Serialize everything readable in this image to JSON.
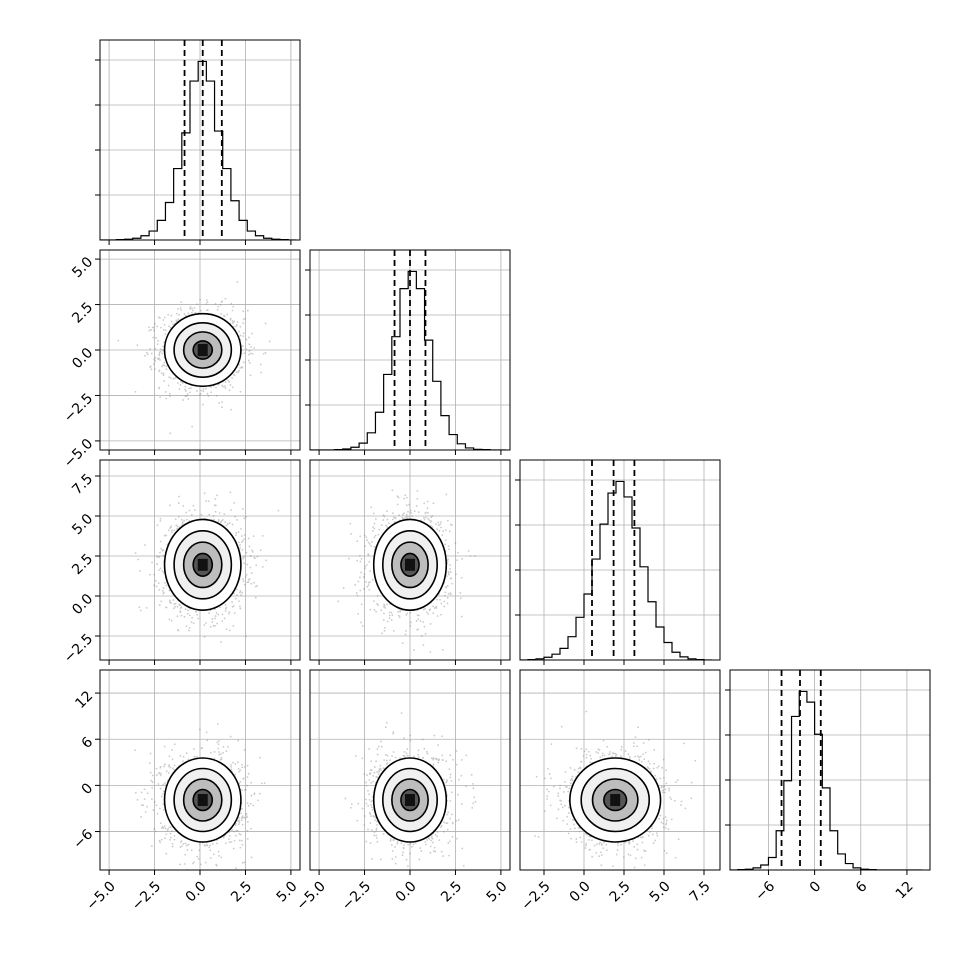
{
  "chart_data": {
    "type": "corner",
    "n_params": 4,
    "grid": true,
    "axis_ranges": [
      [
        -5.5,
        5.5
      ],
      [
        -5.5,
        5.5
      ],
      [
        -4.0,
        8.5
      ],
      [
        -11,
        15
      ]
    ],
    "tick_values": [
      [
        -5.0,
        -2.5,
        0.0,
        2.5,
        5.0
      ],
      [
        -5.0,
        -2.5,
        0.0,
        2.5,
        5.0
      ],
      [
        -2.5,
        0.0,
        2.5,
        5.0,
        7.5
      ],
      [
        -6,
        0,
        6,
        12
      ]
    ],
    "tick_labels": [
      [
        "−5.0",
        "−2.5",
        "0.0",
        "2.5",
        "5.0"
      ],
      [
        "−5.0",
        "−2.5",
        "0.0",
        "2.5",
        "5.0"
      ],
      [
        "−2.5",
        "0.0",
        "2.5",
        "5.0",
        "7.5"
      ],
      [
        "−6",
        "0",
        "6",
        "12"
      ]
    ],
    "parameters": [
      {
        "mean": 0.15,
        "sd": 1.0,
        "quantiles": [
          -0.85,
          0.15,
          1.2
        ]
      },
      {
        "mean": 0.0,
        "sd": 0.95,
        "quantiles": [
          -0.85,
          0.0,
          0.85
        ]
      },
      {
        "mean": 1.95,
        "sd": 1.35,
        "quantiles": [
          0.5,
          1.85,
          3.15
        ]
      },
      {
        "mean": -1.9,
        "sd": 2.6,
        "quantiles": [
          -4.3,
          -1.9,
          0.8
        ]
      }
    ],
    "histograms": [
      {
        "bin_edges": [
          -5.5,
          -5.05,
          -4.6,
          -4.15,
          -3.7,
          -3.25,
          -2.8,
          -2.35,
          -1.9,
          -1.45,
          -1.0,
          -0.55,
          -0.1,
          0.35,
          0.8,
          1.25,
          1.7,
          2.15,
          2.6,
          3.05,
          3.5,
          3.95,
          4.4,
          4.85,
          5.3
        ],
        "counts": [
          0,
          0,
          1,
          2,
          5,
          12,
          25,
          55,
          105,
          200,
          300,
          445,
          500,
          445,
          305,
          200,
          110,
          55,
          25,
          12,
          5,
          2,
          1,
          0
        ]
      },
      {
        "bin_edges": [
          -5.5,
          -5.05,
          -4.6,
          -4.15,
          -3.7,
          -3.25,
          -2.8,
          -2.35,
          -1.9,
          -1.45,
          -1.0,
          -0.55,
          -0.1,
          0.35,
          0.8,
          1.25,
          1.7,
          2.15,
          2.6,
          3.05,
          3.5,
          3.95,
          4.4,
          4.85,
          5.3
        ],
        "counts": [
          0,
          0,
          0,
          1,
          3,
          8,
          20,
          50,
          110,
          220,
          330,
          470,
          520,
          470,
          320,
          200,
          100,
          45,
          18,
          6,
          2,
          1,
          0,
          0
        ]
      },
      {
        "bin_edges": [
          -4.0,
          -3.5,
          -3.0,
          -2.5,
          -2.0,
          -1.5,
          -1.0,
          -0.5,
          0.0,
          0.5,
          1.0,
          1.5,
          2.0,
          2.5,
          3.0,
          3.5,
          4.0,
          4.5,
          5.0,
          5.5,
          6.0,
          6.5,
          7.0,
          7.5,
          8.0
        ],
        "counts": [
          0,
          1,
          3,
          7,
          15,
          30,
          60,
          110,
          170,
          260,
          350,
          430,
          460,
          420,
          340,
          240,
          150,
          85,
          45,
          20,
          8,
          3,
          1,
          0
        ]
      },
      {
        "bin_edges": [
          -11,
          -10,
          -9,
          -8,
          -7,
          -6,
          -5,
          -4,
          -3,
          -2,
          -1,
          0,
          1,
          2,
          3,
          4,
          5,
          6,
          7,
          8,
          9,
          10,
          11,
          12,
          13,
          14
        ],
        "counts": [
          0,
          1,
          2,
          6,
          14,
          35,
          110,
          250,
          430,
          500,
          470,
          380,
          230,
          110,
          45,
          18,
          6,
          2,
          1,
          0,
          0,
          0,
          0,
          0,
          0
        ]
      }
    ],
    "contour_levels_sigma": [
      0.5,
      1.0,
      1.5,
      2.0
    ],
    "colors": {
      "line": "#000000",
      "density": "#000000",
      "scatter": "#8a8a8a",
      "grid": "#b0b0b0"
    }
  }
}
